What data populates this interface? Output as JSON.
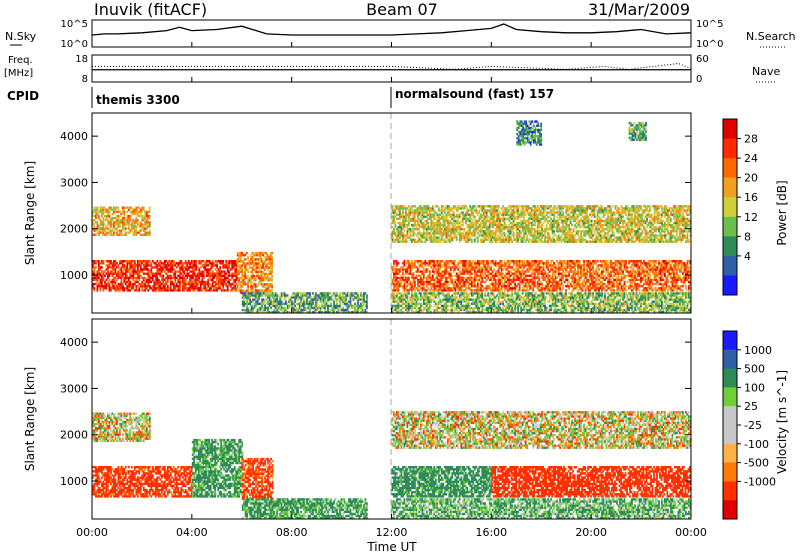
{
  "header": {
    "station": "Inuvik (fitACF)",
    "beam": "Beam 07",
    "date": "31/Mar/2009"
  },
  "top_panels": {
    "nsky_label": "N.Sky",
    "nsky_ticks": [
      "10^5",
      "10^0"
    ],
    "nsearch_label": "N.Search",
    "freq_label_1": "Freq.",
    "freq_label_2": "[MHz]",
    "freq_ticks": [
      "18",
      "8"
    ],
    "nave_ticks": [
      "60",
      "0"
    ],
    "nave_label": "Nave",
    "cpid_label": "CPID",
    "cpid_segments": [
      "themis 3300",
      "normalsound (fast) 157"
    ]
  },
  "colors": {
    "power_scale": [
      "#1a1aff",
      "#2f5fa8",
      "#2e8b57",
      "#6dbf4b",
      "#cfcf3a",
      "#f0a020",
      "#ff6a00",
      "#ff2a00",
      "#e00000"
    ],
    "velocity_scale": [
      "#e00000",
      "#ff3000",
      "#ff7a00",
      "#ffb347",
      "#c8c8c8",
      "#c8c8c8",
      "#6fcf3a",
      "#2e8b57",
      "#2f5fa8",
      "#1a1aff"
    ]
  },
  "chart_data": [
    {
      "type": "line",
      "title": "",
      "ylabel": "N.Sky",
      "y_ticks": [
        "10^0",
        "10^5"
      ],
      "x_ticks": [
        "00:00",
        "04:00",
        "08:00",
        "12:00",
        "16:00",
        "20:00",
        "00:00"
      ],
      "xlim": [
        0,
        24
      ],
      "series": [
        {
          "name": "N.Sky",
          "x": [
            0,
            0.5,
            1,
            2,
            3,
            3.5,
            4,
            5,
            6,
            7,
            8,
            9,
            10,
            11,
            12,
            13,
            14,
            15,
            16,
            16.5,
            17,
            18,
            19,
            20,
            21,
            22,
            23,
            24
          ],
          "values": [
            0.5,
            0.55,
            0.55,
            0.6,
            0.7,
            0.85,
            0.7,
            0.75,
            0.9,
            0.55,
            0.5,
            0.5,
            0.5,
            0.5,
            0.5,
            0.55,
            0.6,
            0.7,
            0.8,
            1.0,
            0.75,
            0.65,
            0.6,
            0.6,
            0.65,
            0.75,
            0.55,
            0.6
          ]
        }
      ]
    },
    {
      "type": "line",
      "title": "",
      "ylabel": "Freq. [MHz]",
      "ylim": [
        8,
        18
      ],
      "y2lim": [
        0,
        60
      ],
      "y2label": "Nave",
      "series": [
        {
          "name": "Freq.",
          "x": [
            0,
            12,
            13,
            14.5,
            16,
            17,
            18,
            19.5,
            20,
            21.5,
            23,
            24
          ],
          "values": [
            12.5,
            12.5,
            12.5,
            12.5,
            12.5,
            12.5,
            12.5,
            12.5,
            12.5,
            12.5,
            12.5,
            12.5
          ]
        },
        {
          "name": "Nave",
          "x": [
            0,
            12,
            14.5,
            16,
            19,
            20.5,
            21.5,
            22.5,
            23.5,
            24
          ],
          "values": [
            35,
            35,
            28,
            35,
            28,
            35,
            28,
            35,
            42,
            30
          ]
        }
      ]
    },
    {
      "type": "heatmap",
      "title": "",
      "xlabel": "",
      "ylabel": "Slant Range [km]",
      "colorbar_label": "Power [dB]",
      "colorbar_ticks": [
        "4",
        "8",
        "12",
        "16",
        "20",
        "24",
        "28"
      ],
      "colorbar_range": [
        0,
        30
      ],
      "xlim": [
        0,
        24
      ],
      "ylim": [
        180,
        4500
      ],
      "y_ticks": [
        "1000",
        "2000",
        "3000",
        "4000"
      ],
      "x_ticks": [
        "00:00",
        "04:00",
        "08:00",
        "12:00",
        "16:00",
        "20:00",
        "00:00"
      ],
      "regions": [
        {
          "t0": 0,
          "t1": 2.3,
          "r0": 1850,
          "r1": 2450,
          "value": 18
        },
        {
          "t0": 0,
          "t1": 5.8,
          "r0": 650,
          "r1": 1300,
          "value": 26
        },
        {
          "t0": 5.8,
          "t1": 7.2,
          "r0": 600,
          "r1": 1500,
          "value": 20
        },
        {
          "t0": 6,
          "t1": 11,
          "r0": 180,
          "r1": 600,
          "value": 10
        },
        {
          "t0": 12,
          "t1": 24,
          "r0": 650,
          "r1": 1300,
          "value": 22
        },
        {
          "t0": 12,
          "t1": 24,
          "r0": 1700,
          "r1": 2500,
          "value": 15
        },
        {
          "t0": 12,
          "t1": 24,
          "r0": 180,
          "r1": 600,
          "value": 12
        },
        {
          "t0": 17,
          "t1": 18,
          "r0": 3800,
          "r1": 4300,
          "value": 8
        },
        {
          "t0": 21.5,
          "t1": 22.2,
          "r0": 3900,
          "r1": 4300,
          "value": 10
        }
      ]
    },
    {
      "type": "heatmap",
      "title": "",
      "xlabel": "Time UT",
      "ylabel": "Slant Range [km]",
      "colorbar_label": "Velocity [m s^-1]",
      "colorbar_ticks": [
        "1000",
        "500",
        "100",
        "25",
        "-25",
        "-100",
        "-500",
        "-1000"
      ],
      "colorbar_range": [
        -1000,
        1000
      ],
      "xlim": [
        0,
        24
      ],
      "ylim": [
        180,
        4500
      ],
      "y_ticks": [
        "1000",
        "2000",
        "3000",
        "4000"
      ],
      "x_ticks": [
        "00:00",
        "04:00",
        "08:00",
        "12:00",
        "16:00",
        "20:00",
        "00:00"
      ],
      "regions": [
        {
          "t0": 0,
          "t1": 2.3,
          "r0": 1850,
          "r1": 2450,
          "value": 0
        },
        {
          "t0": 0,
          "t1": 4,
          "r0": 650,
          "r1": 1300,
          "value": -200
        },
        {
          "t0": 4,
          "t1": 6,
          "r0": 650,
          "r1": 1900,
          "value": 150
        },
        {
          "t0": 6,
          "t1": 7.2,
          "r0": 600,
          "r1": 1500,
          "value": -150
        },
        {
          "t0": 6,
          "t1": 11,
          "r0": 180,
          "r1": 600,
          "value": 150
        },
        {
          "t0": 12,
          "t1": 16,
          "r0": 650,
          "r1": 1300,
          "value": 200
        },
        {
          "t0": 16,
          "t1": 24,
          "r0": 650,
          "r1": 1300,
          "value": -300
        },
        {
          "t0": 12,
          "t1": 24,
          "r0": 1700,
          "r1": 2500,
          "value": 0
        },
        {
          "t0": 12,
          "t1": 24,
          "r0": 180,
          "r1": 600,
          "value": 100
        }
      ]
    }
  ]
}
